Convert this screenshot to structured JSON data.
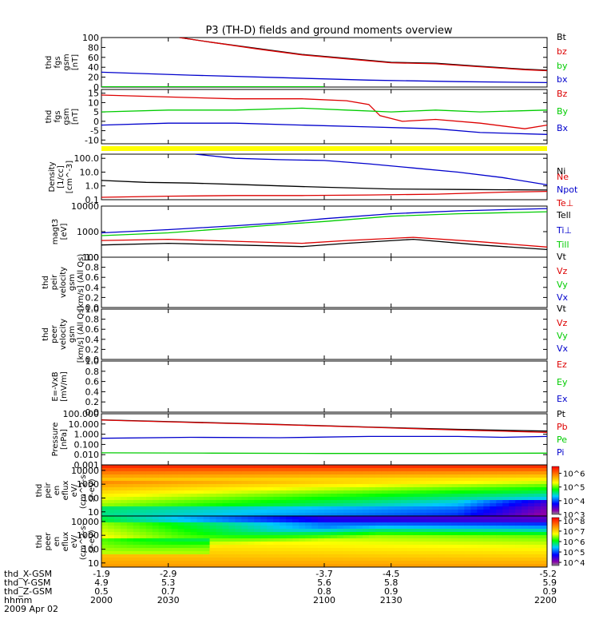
{
  "title": "P3 (TH-D) fields and ground moments overview",
  "colors": {
    "black": "#000000",
    "red": "#dd0000",
    "green": "#00cc00",
    "blue": "#0000cc",
    "yellow": "#ffff00"
  },
  "chart_data": {
    "type": "line",
    "x": {
      "range": [
        2000,
        2200
      ],
      "ticks": [
        "2000",
        "2030",
        "2100",
        "2130",
        "2200"
      ]
    },
    "panels": [
      {
        "key": "fgs_gsm",
        "ylabel": [
          "thd",
          "fgs",
          "gsm",
          "[nT]"
        ],
        "ylim": [
          0,
          100
        ],
        "log": false,
        "ticks": [
          "0",
          "20",
          "40",
          "60",
          "80",
          "100"
        ],
        "legend": [
          {
            "text": "Bt",
            "color": "black"
          },
          {
            "text": "bz",
            "color": "red"
          },
          {
            "text": "by",
            "color": "green"
          },
          {
            "text": "bx",
            "color": "blue"
          }
        ],
        "series": [
          {
            "color": "black",
            "points": [
              [
                2035,
                100
              ],
              [
                2050,
                90
              ],
              [
                2070,
                78
              ],
              [
                2090,
                66
              ],
              [
                2110,
                58
              ],
              [
                2130,
                50
              ],
              [
                2150,
                48
              ],
              [
                2170,
                42
              ],
              [
                2190,
                36
              ],
              [
                2200,
                34
              ]
            ]
          },
          {
            "color": "red",
            "points": [
              [
                2035,
                100
              ],
              [
                2050,
                90
              ],
              [
                2070,
                77
              ],
              [
                2090,
                65
              ],
              [
                2110,
                57
              ],
              [
                2130,
                49
              ],
              [
                2150,
                47
              ],
              [
                2170,
                41
              ],
              [
                2190,
                35
              ],
              [
                2200,
                33
              ]
            ]
          },
          {
            "color": "green",
            "points": [
              [
                2000,
                0.5
              ],
              [
                2100,
                0.5
              ]
            ]
          },
          {
            "color": "blue",
            "points": [
              [
                2000,
                30
              ],
              [
                2040,
                24
              ],
              [
                2080,
                19
              ],
              [
                2120,
                14
              ],
              [
                2160,
                11
              ],
              [
                2200,
                9
              ]
            ]
          }
        ]
      },
      {
        "key": "fgs_gse",
        "ylabel": [
          "thd",
          "fgs",
          "gsm",
          "[nT]"
        ],
        "ylim": [
          -12,
          17
        ],
        "log": false,
        "ticks": [
          "-10",
          "-5",
          "0",
          "5",
          "10",
          "15"
        ],
        "legend": [
          {
            "text": "Bz",
            "color": "red"
          },
          {
            "text": "By",
            "color": "green"
          },
          {
            "text": "Bx",
            "color": "blue"
          }
        ],
        "series": [
          {
            "color": "red",
            "points": [
              [
                2000,
                14
              ],
              [
                2030,
                13
              ],
              [
                2060,
                12
              ],
              [
                2090,
                12
              ],
              [
                2110,
                11
              ],
              [
                2120,
                9
              ],
              [
                2125,
                3
              ],
              [
                2135,
                0
              ],
              [
                2150,
                1
              ],
              [
                2170,
                -1
              ],
              [
                2190,
                -4
              ],
              [
                2200,
                -2
              ]
            ]
          },
          {
            "color": "green",
            "points": [
              [
                2000,
                5
              ],
              [
                2030,
                6
              ],
              [
                2060,
                6
              ],
              [
                2090,
                7
              ],
              [
                2110,
                6
              ],
              [
                2130,
                5
              ],
              [
                2150,
                6
              ],
              [
                2170,
                5
              ],
              [
                2200,
                6
              ]
            ]
          },
          {
            "color": "blue",
            "points": [
              [
                2000,
                -2
              ],
              [
                2030,
                -1
              ],
              [
                2060,
                -1
              ],
              [
                2090,
                -2
              ],
              [
                2120,
                -3
              ],
              [
                2150,
                -4
              ],
              [
                2170,
                -6
              ],
              [
                2200,
                -7
              ]
            ]
          }
        ]
      },
      {
        "key": "density",
        "ylabel": [
          "Density",
          "[1/cc]",
          "[cm^-3]"
        ],
        "ylim": [
          0.1,
          200
        ],
        "log": true,
        "ticks": [
          "0.1",
          "1.0",
          "10.0",
          "100.0"
        ],
        "legend": [
          {
            "text": "Ne",
            "color": "red"
          },
          {
            "text": "Ni",
            "color": "black"
          },
          {
            "text": "Npot",
            "color": "blue"
          },
          {
            "text": "Te⊥",
            "color": "red"
          }
        ],
        "series": [
          {
            "color": "blue",
            "points": [
              [
                2042,
                200
              ],
              [
                2060,
                100
              ],
              [
                2080,
                80
              ],
              [
                2100,
                70
              ],
              [
                2120,
                40
              ],
              [
                2140,
                20
              ],
              [
                2160,
                10
              ],
              [
                2180,
                4
              ],
              [
                2200,
                1.2
              ]
            ]
          },
          {
            "color": "black",
            "points": [
              [
                2000,
                2.5
              ],
              [
                2020,
                1.8
              ],
              [
                2040,
                1.6
              ],
              [
                2060,
                1.3
              ],
              [
                2080,
                1.0
              ],
              [
                2100,
                0.8
              ],
              [
                2130,
                0.6
              ],
              [
                2160,
                0.55
              ],
              [
                2200,
                0.5
              ]
            ]
          },
          {
            "color": "red",
            "points": [
              [
                2000,
                0.15
              ],
              [
                2030,
                0.18
              ],
              [
                2060,
                0.2
              ],
              [
                2090,
                0.2
              ],
              [
                2120,
                0.22
              ],
              [
                2150,
                0.25
              ],
              [
                2180,
                0.35
              ],
              [
                2200,
                0.4
              ]
            ]
          }
        ]
      },
      {
        "key": "temps",
        "ylabel": [
          "magt3",
          "[eV]"
        ],
        "ylim": [
          100,
          10000
        ],
        "log": true,
        "ticks": [
          "100",
          "1000",
          "10000"
        ],
        "legend": [
          {
            "text": "Tell",
            "color": "black"
          },
          {
            "text": "Ti⊥",
            "color": "blue"
          },
          {
            "text": "Till",
            "color": "green"
          }
        ],
        "series": [
          {
            "color": "blue",
            "points": [
              [
                2000,
                900
              ],
              [
                2030,
                1200
              ],
              [
                2060,
                1700
              ],
              [
                2080,
                2200
              ],
              [
                2100,
                3200
              ],
              [
                2130,
                5000
              ],
              [
                2160,
                6500
              ],
              [
                2200,
                8000
              ]
            ]
          },
          {
            "color": "green",
            "points": [
              [
                2000,
                700
              ],
              [
                2030,
                900
              ],
              [
                2060,
                1400
              ],
              [
                2080,
                1900
              ],
              [
                2100,
                2500
              ],
              [
                2130,
                4000
              ],
              [
                2160,
                5000
              ],
              [
                2200,
                6000
              ]
            ]
          },
          {
            "color": "red",
            "points": [
              [
                2000,
                450
              ],
              [
                2030,
                500
              ],
              [
                2060,
                420
              ],
              [
                2090,
                350
              ],
              [
                2110,
                450
              ],
              [
                2140,
                600
              ],
              [
                2170,
                400
              ],
              [
                2200,
                250
              ]
            ]
          },
          {
            "color": "black",
            "points": [
              [
                2000,
                300
              ],
              [
                2030,
                350
              ],
              [
                2060,
                300
              ],
              [
                2090,
                260
              ],
              [
                2110,
                350
              ],
              [
                2140,
                500
              ],
              [
                2170,
                300
              ],
              [
                2200,
                200
              ]
            ]
          }
        ]
      },
      {
        "key": "ion_velocity",
        "ylabel": [
          "thd",
          "peir",
          "velocity",
          "gsm",
          "[km/s] (All Qs)"
        ],
        "ylim": [
          0,
          1
        ],
        "log": false,
        "ticks": [
          "0.0",
          "0.2",
          "0.4",
          "0.6",
          "0.8",
          "1.0"
        ],
        "legend": [
          {
            "text": "Vt",
            "color": "black"
          },
          {
            "text": "Vz",
            "color": "red"
          },
          {
            "text": "Vy",
            "color": "green"
          },
          {
            "text": "Vx",
            "color": "blue"
          }
        ],
        "series": []
      },
      {
        "key": "electron_velocity",
        "ylabel": [
          "thd",
          "peer",
          "velocity",
          "gsm",
          "[km/s] (All Qs)"
        ],
        "ylim": [
          0,
          1
        ],
        "log": false,
        "ticks": [
          "0.0",
          "0.2",
          "0.4",
          "0.6",
          "0.8",
          "1.0"
        ],
        "legend": [
          {
            "text": "Vt",
            "color": "black"
          },
          {
            "text": "Vz",
            "color": "red"
          },
          {
            "text": "Vy",
            "color": "green"
          },
          {
            "text": "Vx",
            "color": "blue"
          }
        ],
        "series": []
      },
      {
        "key": "efield",
        "ylabel": [
          "E=-VxB",
          "[mV/m]"
        ],
        "ylim": [
          0,
          1
        ],
        "log": false,
        "ticks": [
          "0.0",
          "0.2",
          "0.4",
          "0.6",
          "0.8",
          "1.0"
        ],
        "legend": [
          {
            "text": "Ez",
            "color": "red"
          },
          {
            "text": "Ey",
            "color": "green"
          },
          {
            "text": "Ex",
            "color": "blue"
          }
        ],
        "series": []
      },
      {
        "key": "pressure",
        "ylabel": [
          "Pressure",
          "[nPa]"
        ],
        "ylim": [
          0.001,
          100
        ],
        "log": true,
        "ticks": [
          "0.001",
          "0.010",
          "0.100",
          "1.000",
          "10.000",
          "100.000"
        ],
        "legend": [
          {
            "text": "Pt",
            "color": "black"
          },
          {
            "text": "Pb",
            "color": "red"
          },
          {
            "text": "Pe",
            "color": "green"
          },
          {
            "text": "Pi",
            "color": "blue"
          }
        ],
        "series": [
          {
            "color": "black",
            "points": [
              [
                2000,
                25
              ],
              [
                2040,
                15
              ],
              [
                2080,
                9
              ],
              [
                2120,
                5
              ],
              [
                2160,
                3
              ],
              [
                2200,
                2
              ]
            ]
          },
          {
            "color": "red",
            "points": [
              [
                2000,
                24
              ],
              [
                2040,
                14
              ],
              [
                2080,
                8.5
              ],
              [
                2120,
                4.8
              ],
              [
                2160,
                2.6
              ],
              [
                2200,
                1.5
              ]
            ]
          },
          {
            "color": "blue",
            "points": [
              [
                2000,
                0.4
              ],
              [
                2040,
                0.5
              ],
              [
                2080,
                0.45
              ],
              [
                2120,
                0.6
              ],
              [
                2160,
                0.6
              ],
              [
                2180,
                0.5
              ],
              [
                2200,
                0.6
              ]
            ]
          },
          {
            "color": "green",
            "points": [
              [
                2000,
                0.015
              ],
              [
                2050,
                0.014
              ],
              [
                2100,
                0.013
              ],
              [
                2150,
                0.013
              ],
              [
                2200,
                0.014
              ]
            ]
          }
        ]
      }
    ],
    "spectrograms": [
      {
        "key": "ion_eflux",
        "ylabel": [
          "thd",
          "peir",
          "en",
          "eflux",
          "eV/",
          "(cm^2-s-",
          "sr-eV)"
        ],
        "ylim": [
          5,
          25000
        ],
        "log": true,
        "ticks": [
          "10",
          "100",
          "1000",
          "10000"
        ],
        "colorbar_ticks": [
          "10^3",
          "10^4",
          "10^5",
          "10^6"
        ],
        "colorbar_range": [
          3,
          6.5
        ]
      },
      {
        "key": "electron_eflux",
        "ylabel": [
          "thd",
          "peer",
          "en",
          "eflux",
          "eV/",
          "(cm^2-s-",
          "sr-eV)"
        ],
        "ylim": [
          5,
          25000
        ],
        "log": true,
        "ticks": [
          "10",
          "100",
          "1000",
          "10000"
        ],
        "colorbar_ticks": [
          "10^4",
          "10^5",
          "10^6",
          "10^7",
          "10^8"
        ],
        "colorbar_range": [
          3.7,
          8.3
        ]
      }
    ],
    "x_labels": {
      "rows": [
        {
          "label": "thd_X-GSM",
          "values": [
            "-1.9",
            "-2.9",
            "-3.7",
            "-4.5",
            "-5.2"
          ]
        },
        {
          "label": "thd_Y-GSM",
          "values": [
            "4.9",
            "5.3",
            "5.6",
            "5.8",
            "5.9"
          ]
        },
        {
          "label": "thd_Z-GSM",
          "values": [
            "0.5",
            "0.7",
            "0.8",
            "0.9",
            "0.9"
          ]
        },
        {
          "label": "hhmm",
          "values": [
            "2000",
            "2030",
            "2100",
            "2130",
            "2200"
          ]
        }
      ],
      "date": "2009 Apr 02"
    }
  }
}
